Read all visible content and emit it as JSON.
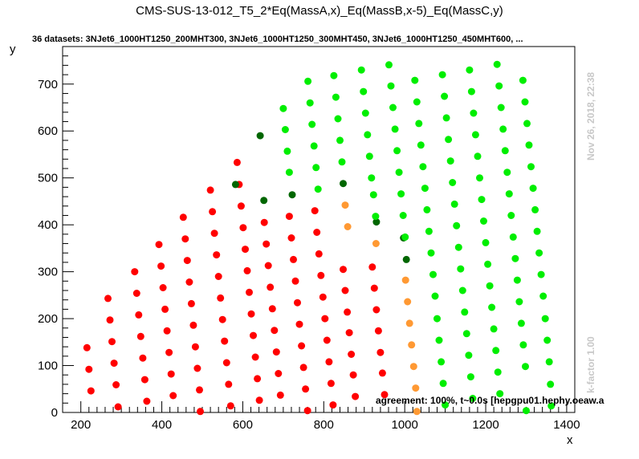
{
  "window_title": "CMS-SUS-13-012_T5_2*Eq(MassA,x)_Eq(MassB,x-5)_Eq(MassC,y)",
  "subtitle": "36 datasets: 3NJet6_1000HT1250_200MHT300, 3NJet6_1000HT1250_300MHT450, 3NJet6_1000HT1250_450MHT600,  ...",
  "side_label_date": "Nov 26, 2018, 22:38",
  "side_label_kfactor": "k-factor 1.00",
  "footer_text": "agreement: 100%, t~0.0s [hepgpu01.hephy.oeaw.a",
  "colors": {
    "red": "#ff0000",
    "green": "#00ee00",
    "dark_green": "#006600",
    "orange": "#ff9933",
    "axis": "#000000",
    "side_text": "#c8c8c8"
  },
  "chart_data": {
    "type": "scatter",
    "title": "CMS-SUS-13-012_T5_2*Eq(MassA,x)_Eq(MassB,x-5)_Eq(MassC,y)",
    "subtitle": "36 datasets: 3NJet6_1000HT1250_200MHT300, 3NJet6_1000HT1250_300MHT450, 3NJet6_1000HT1250_450MHT600,  ...",
    "xlabel": "x",
    "ylabel": "y",
    "xlim": [
      155,
      1420
    ],
    "ylim": [
      0,
      780
    ],
    "x_ticks": [
      200,
      400,
      600,
      800,
      1000,
      1200,
      1400
    ],
    "y_ticks": [
      0,
      100,
      200,
      300,
      400,
      500,
      600,
      700
    ],
    "grid": false,
    "legend": "none",
    "series": [
      {
        "color": "red",
        "points": [
          [
            215,
            138
          ],
          [
            220,
            92
          ],
          [
            225,
            46
          ],
          [
            267,
            243
          ],
          [
            272,
            197
          ],
          [
            277,
            151
          ],
          [
            282,
            105
          ],
          [
            287,
            59
          ],
          [
            292,
            12
          ],
          [
            333,
            300
          ],
          [
            338,
            254
          ],
          [
            343,
            208
          ],
          [
            348,
            162
          ],
          [
            353,
            116
          ],
          [
            358,
            70
          ],
          [
            363,
            24
          ],
          [
            393,
            358
          ],
          [
            398,
            312
          ],
          [
            403,
            266
          ],
          [
            408,
            220
          ],
          [
            413,
            174
          ],
          [
            418,
            128
          ],
          [
            423,
            82
          ],
          [
            428,
            36
          ],
          [
            453,
            416
          ],
          [
            458,
            370
          ],
          [
            463,
            324
          ],
          [
            468,
            278
          ],
          [
            473,
            232
          ],
          [
            478,
            186
          ],
          [
            483,
            140
          ],
          [
            488,
            94
          ],
          [
            493,
            48
          ],
          [
            495,
            2
          ],
          [
            520,
            474
          ],
          [
            525,
            428
          ],
          [
            530,
            382
          ],
          [
            535,
            336
          ],
          [
            540,
            290
          ],
          [
            545,
            244
          ],
          [
            550,
            198
          ],
          [
            555,
            152
          ],
          [
            560,
            106
          ],
          [
            565,
            60
          ],
          [
            570,
            14
          ],
          [
            586,
            533
          ],
          [
            591,
            486
          ],
          [
            596,
            440
          ],
          [
            601,
            394
          ],
          [
            606,
            348
          ],
          [
            611,
            302
          ],
          [
            616,
            256
          ],
          [
            621,
            210
          ],
          [
            626,
            164
          ],
          [
            631,
            118
          ],
          [
            636,
            72
          ],
          [
            641,
            26
          ],
          [
            653,
            405
          ],
          [
            658,
            359
          ],
          [
            663,
            313
          ],
          [
            668,
            267
          ],
          [
            673,
            221
          ],
          [
            678,
            175
          ],
          [
            683,
            129
          ],
          [
            688,
            83
          ],
          [
            693,
            37
          ],
          [
            715,
            418
          ],
          [
            720,
            372
          ],
          [
            725,
            326
          ],
          [
            730,
            280
          ],
          [
            735,
            234
          ],
          [
            740,
            188
          ],
          [
            745,
            142
          ],
          [
            750,
            96
          ],
          [
            755,
            50
          ],
          [
            760,
            4
          ],
          [
            778,
            430
          ],
          [
            783,
            384
          ],
          [
            788,
            338
          ],
          [
            793,
            292
          ],
          [
            798,
            246
          ],
          [
            803,
            200
          ],
          [
            808,
            154
          ],
          [
            813,
            108
          ],
          [
            818,
            62
          ],
          [
            823,
            16
          ],
          [
            848,
            305
          ],
          [
            853,
            260
          ],
          [
            858,
            214
          ],
          [
            863,
            170
          ],
          [
            868,
            124
          ],
          [
            873,
            80
          ],
          [
            878,
            34
          ],
          [
            920,
            310
          ],
          [
            925,
            265
          ],
          [
            930,
            219
          ],
          [
            935,
            174
          ],
          [
            940,
            128
          ],
          [
            945,
            84
          ],
          [
            950,
            38
          ]
        ]
      },
      {
        "color": "dark_green",
        "points": [
          [
            582,
            486
          ],
          [
            643,
            590
          ],
          [
            652,
            452
          ],
          [
            722,
            464
          ],
          [
            848,
            488
          ],
          [
            930,
            406
          ],
          [
            997,
            372
          ],
          [
            1004,
            326
          ]
        ]
      },
      {
        "color": "orange",
        "points": [
          [
            853,
            442
          ],
          [
            859,
            396
          ],
          [
            929,
            360
          ],
          [
            1002,
            282
          ],
          [
            1007,
            236
          ],
          [
            1012,
            190
          ],
          [
            1017,
            144
          ],
          [
            1022,
            98
          ],
          [
            1027,
            52
          ],
          [
            1030,
            2
          ]
        ]
      },
      {
        "color": "green",
        "points": [
          [
            700,
            648
          ],
          [
            705,
            603
          ],
          [
            710,
            557
          ],
          [
            715,
            512
          ],
          [
            761,
            706
          ],
          [
            766,
            660
          ],
          [
            771,
            614
          ],
          [
            776,
            568
          ],
          [
            781,
            522
          ],
          [
            786,
            476
          ],
          [
            825,
            718
          ],
          [
            830,
            672
          ],
          [
            835,
            626
          ],
          [
            840,
            580
          ],
          [
            845,
            534
          ],
          [
            893,
            730
          ],
          [
            898,
            684
          ],
          [
            903,
            638
          ],
          [
            908,
            592
          ],
          [
            913,
            546
          ],
          [
            918,
            500
          ],
          [
            923,
            464
          ],
          [
            928,
            418
          ],
          [
            961,
            741
          ],
          [
            966,
            696
          ],
          [
            971,
            650
          ],
          [
            976,
            604
          ],
          [
            981,
            558
          ],
          [
            986,
            512
          ],
          [
            991,
            466
          ],
          [
            996,
            420
          ],
          [
            1001,
            374
          ],
          [
            1025,
            708
          ],
          [
            1030,
            662
          ],
          [
            1035,
            616
          ],
          [
            1040,
            570
          ],
          [
            1045,
            524
          ],
          [
            1050,
            478
          ],
          [
            1055,
            432
          ],
          [
            1060,
            386
          ],
          [
            1065,
            340
          ],
          [
            1070,
            294
          ],
          [
            1075,
            248
          ],
          [
            1080,
            200
          ],
          [
            1085,
            154
          ],
          [
            1090,
            108
          ],
          [
            1095,
            62
          ],
          [
            1100,
            16
          ],
          [
            1093,
            720
          ],
          [
            1098,
            674
          ],
          [
            1103,
            628
          ],
          [
            1108,
            582
          ],
          [
            1113,
            536
          ],
          [
            1118,
            490
          ],
          [
            1123,
            444
          ],
          [
            1128,
            398
          ],
          [
            1133,
            352
          ],
          [
            1138,
            306
          ],
          [
            1143,
            260
          ],
          [
            1148,
            214
          ],
          [
            1153,
            168
          ],
          [
            1158,
            122
          ],
          [
            1163,
            76
          ],
          [
            1168,
            30
          ],
          [
            1160,
            730
          ],
          [
            1165,
            684
          ],
          [
            1170,
            638
          ],
          [
            1175,
            592
          ],
          [
            1180,
            546
          ],
          [
            1185,
            500
          ],
          [
            1190,
            454
          ],
          [
            1195,
            408
          ],
          [
            1200,
            362
          ],
          [
            1205,
            316
          ],
          [
            1210,
            270
          ],
          [
            1215,
            224
          ],
          [
            1220,
            178
          ],
          [
            1225,
            132
          ],
          [
            1230,
            86
          ],
          [
            1235,
            40
          ],
          [
            1228,
            742
          ],
          [
            1233,
            696
          ],
          [
            1238,
            650
          ],
          [
            1243,
            604
          ],
          [
            1248,
            558
          ],
          [
            1253,
            512
          ],
          [
            1258,
            466
          ],
          [
            1263,
            420
          ],
          [
            1268,
            374
          ],
          [
            1273,
            328
          ],
          [
            1278,
            282
          ],
          [
            1283,
            236
          ],
          [
            1288,
            190
          ],
          [
            1293,
            144
          ],
          [
            1298,
            98
          ],
          [
            1300,
            4
          ],
          [
            1292,
            708
          ],
          [
            1297,
            662
          ],
          [
            1302,
            616
          ],
          [
            1307,
            570
          ],
          [
            1312,
            524
          ],
          [
            1317,
            478
          ],
          [
            1322,
            432
          ],
          [
            1327,
            386
          ],
          [
            1332,
            340
          ],
          [
            1337,
            294
          ],
          [
            1342,
            248
          ],
          [
            1347,
            200
          ],
          [
            1352,
            154
          ],
          [
            1357,
            108
          ],
          [
            1360,
            60
          ],
          [
            1362,
            14
          ]
        ]
      }
    ]
  }
}
